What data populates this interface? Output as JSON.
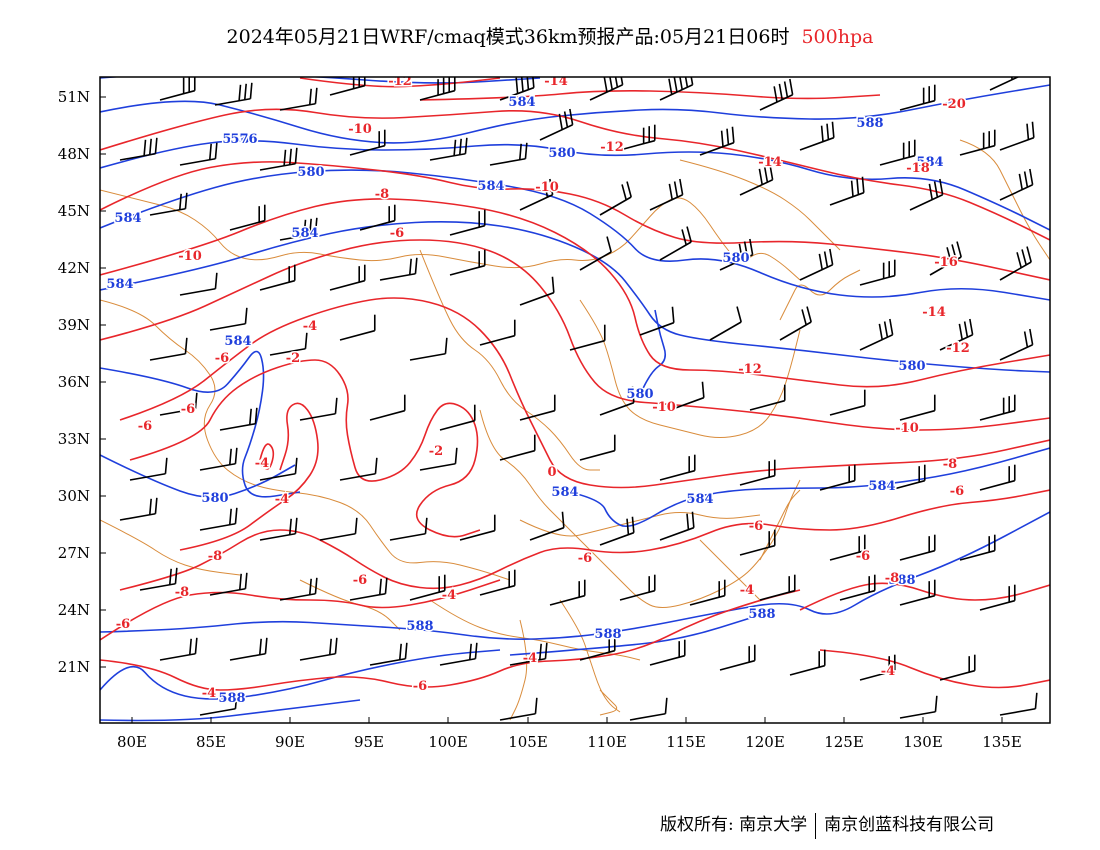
{
  "title": {
    "main": "2024年05月21日WRF/cmaq模式36km预报产品:05月21日06时",
    "level": "500hpa"
  },
  "colors": {
    "height_contour": "#1f3fdc",
    "temperature_contour": "#e8262b",
    "border": "#d98c3c",
    "wind_barb": "#000000"
  },
  "axes": {
    "lat_labels": [
      "51N",
      "48N",
      "45N",
      "42N",
      "39N",
      "36N",
      "33N",
      "30N",
      "27N",
      "24N",
      "21N"
    ],
    "lon_labels": [
      "80E",
      "85E",
      "90E",
      "95E",
      "100E",
      "105E",
      "110E",
      "115E",
      "120E",
      "125E",
      "130E",
      "135E"
    ]
  },
  "height_labels": [
    "576",
    "584",
    "576",
    "580",
    "584",
    "580",
    "584",
    "580",
    "584",
    "584",
    "584",
    "580",
    "584",
    "580",
    "584",
    "584",
    "588",
    "588",
    "588",
    "588",
    "588",
    "580",
    "584",
    "588"
  ],
  "temperature_labels": [
    "-12",
    "-14",
    "-10",
    "-12",
    "-10",
    "-8",
    "-6",
    "-10",
    "-14",
    "-18",
    "-20",
    "-16",
    "-14",
    "-12",
    "-12",
    "-10",
    "-10",
    "-8",
    "-6",
    "-4",
    "-2",
    "-4",
    "-6",
    "-6",
    "-6",
    "-6",
    "-4",
    "-2",
    "0",
    "-6",
    "-6",
    "-4",
    "-4",
    "-8",
    "-8",
    "-6",
    "-6",
    "-4",
    "-4",
    "-4",
    "-6",
    "-6",
    "-8"
  ],
  "copyright": {
    "left": "版权所有: 南京大学",
    "right": "南京创蓝科技有限公司"
  }
}
